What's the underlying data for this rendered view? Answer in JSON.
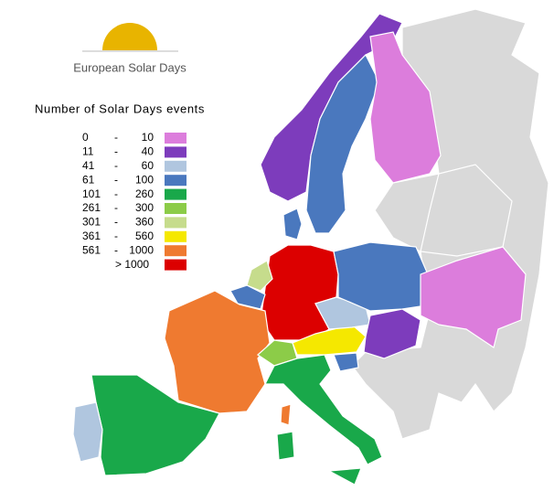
{
  "logo": {
    "text": "European Solar Days"
  },
  "legend": {
    "title": "Number of Solar Days events",
    "separator": "-",
    "rows": [
      {
        "from": "0",
        "to": "10",
        "color": "#dc7ddc"
      },
      {
        "from": "11",
        "to": "40",
        "color": "#7d3cbc"
      },
      {
        "from": "41",
        "to": "60",
        "color": "#b0c6df"
      },
      {
        "from": "61",
        "to": "100",
        "color": "#4a78be"
      },
      {
        "from": "101",
        "to": "260",
        "color": "#19a84a"
      },
      {
        "from": "261",
        "to": "300",
        "color": "#8ccc48"
      },
      {
        "from": "301",
        "to": "360",
        "color": "#c6dc8c"
      },
      {
        "from": "361",
        "to": "560",
        "color": "#f5e800"
      },
      {
        "from": "561",
        "to": "1000",
        "color": "#ef7a30"
      },
      {
        "label": "> 1000",
        "color": "#dc0000"
      }
    ]
  }
}
